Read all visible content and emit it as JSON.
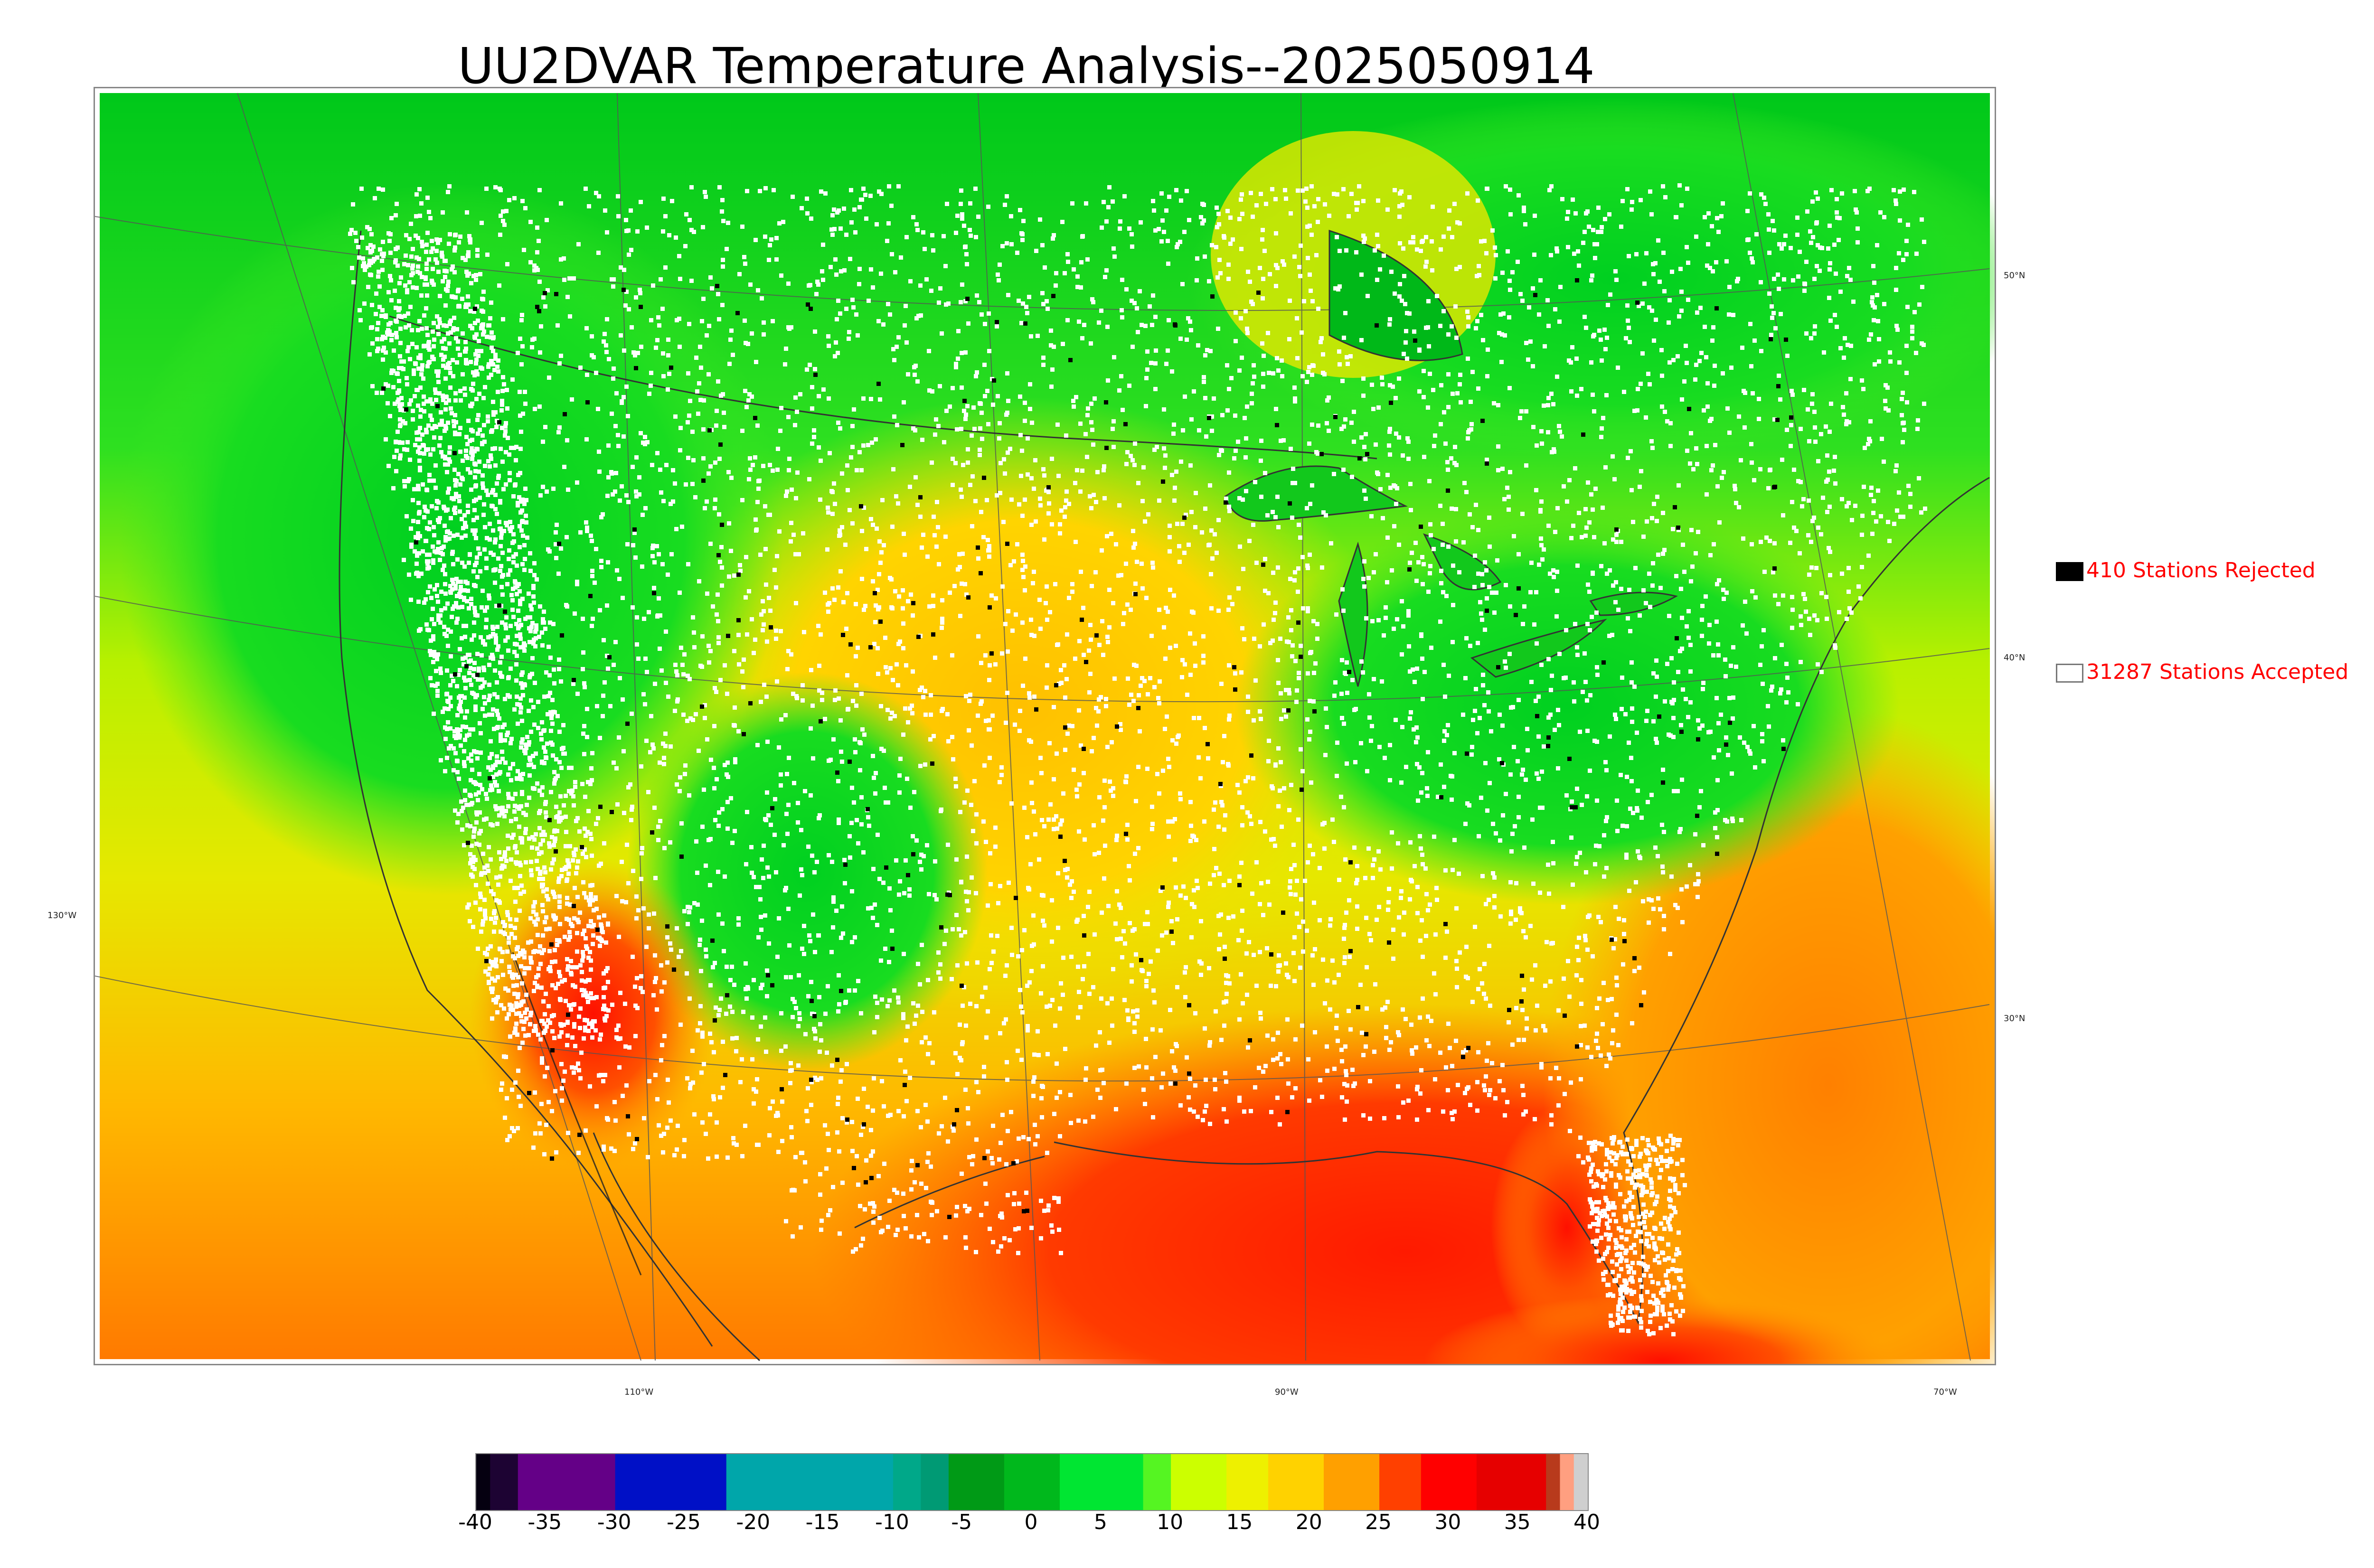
{
  "title": "UU2DVAR Temperature Analysis--2025050914",
  "legend": {
    "rejected_label": "410 Stations Rejected",
    "accepted_label": "31287 Stations Accepted",
    "rejected_color": "#000000",
    "accepted_color": "#ffffff",
    "label_color": "#ff0000"
  },
  "graticule_labels": {
    "lat_right": [
      "50°N",
      "40°N",
      "30°N"
    ],
    "lon_bottom": [
      "110°W",
      "90°W",
      "70°W"
    ],
    "lon_left": "130°W"
  },
  "colorbar": {
    "ticks": [
      "-40",
      "-35",
      "-30",
      "-25",
      "-20",
      "-15",
      "-10",
      "-5",
      "0",
      "5",
      "10",
      "15",
      "20",
      "25",
      "30",
      "35",
      "40"
    ],
    "range": [
      -40,
      40
    ],
    "bands": [
      {
        "from": -40,
        "to": -39,
        "color": "#050010"
      },
      {
        "from": -39,
        "to": -37,
        "color": "#1d0333"
      },
      {
        "from": -37,
        "to": -30,
        "color": "#640087"
      },
      {
        "from": -30,
        "to": -22,
        "color": "#0010c6"
      },
      {
        "from": -22,
        "to": -10,
        "color": "#00a6aa"
      },
      {
        "from": -10,
        "to": -8,
        "color": "#00a889"
      },
      {
        "from": -8,
        "to": -6,
        "color": "#009a74"
      },
      {
        "from": -6,
        "to": -2,
        "color": "#009a16"
      },
      {
        "from": -2,
        "to": 2,
        "color": "#00b81c"
      },
      {
        "from": 2,
        "to": 8,
        "color": "#00e632"
      },
      {
        "from": 8,
        "to": 10,
        "color": "#55f522"
      },
      {
        "from": 10,
        "to": 14,
        "color": "#ccff00"
      },
      {
        "from": 14,
        "to": 17,
        "color": "#eef000"
      },
      {
        "from": 17,
        "to": 21,
        "color": "#ffd200"
      },
      {
        "from": 21,
        "to": 25,
        "color": "#ffa000"
      },
      {
        "from": 25,
        "to": 28,
        "color": "#ff4000"
      },
      {
        "from": 28,
        "to": 32,
        "color": "#ff0000"
      },
      {
        "from": 32,
        "to": 37,
        "color": "#e60000"
      },
      {
        "from": 37,
        "to": 38,
        "color": "#b83a1c"
      },
      {
        "from": 38,
        "to": 39,
        "color": "#ff9f80"
      },
      {
        "from": 39,
        "to": 40,
        "color": "#cfcfcf"
      }
    ]
  },
  "colors": {
    "north_green": "#10c010",
    "mid_yellow": "#d8ec00",
    "south_orange": "#ffa000",
    "gulf_red": "#ff2a00",
    "desert_red": "#ff3000",
    "coast_line": "#333333",
    "graticule": "#555555"
  }
}
